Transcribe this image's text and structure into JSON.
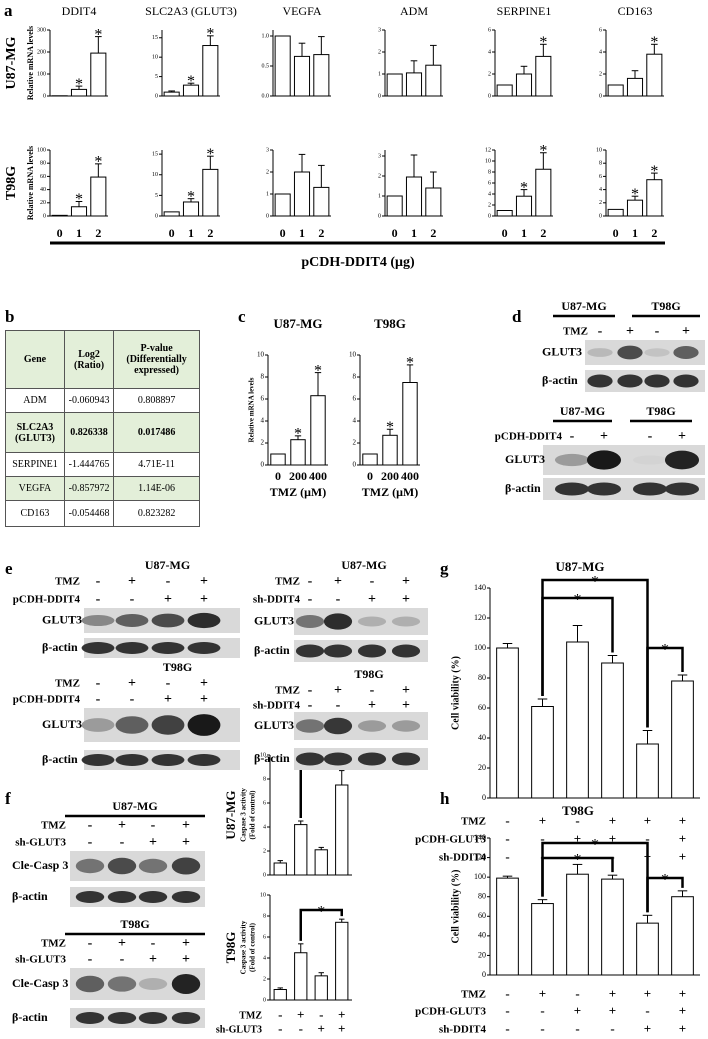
{
  "panel_letters": [
    "a",
    "b",
    "c",
    "d",
    "e",
    "f",
    "g",
    "h"
  ],
  "panel_a": {
    "genes": [
      "DDIT4",
      "SLC2A3 (GLUT3)",
      "VEGFA",
      "ADM",
      "SERPINE1",
      "CD163"
    ],
    "cell_lines": [
      "U87-MG",
      "T98G"
    ],
    "y_label": "Relative mRNA levels",
    "categories": [
      "0",
      "1",
      "2"
    ],
    "x_label": "pCDH-DDIT4 (μg)"
  },
  "table": {
    "header": [
      "Gene",
      "Log2 (Ratio)",
      "P-value (Differentially expressed)"
    ],
    "rows": [
      [
        "ADM",
        "-0.060943",
        "0.808897"
      ],
      [
        "SLC2A3 (GLUT3)",
        "0.826338",
        "0.017486"
      ],
      [
        "SERPINE1",
        "-1.444765",
        "4.71E-11"
      ],
      [
        "VEGFA",
        "-0.857972",
        "1.14E-06"
      ],
      [
        "CD163",
        "-0.054468",
        "0.823282"
      ]
    ]
  },
  "blots_d": [
    {
      "cells": [
        "U87-MG",
        "T98G"
      ],
      "rows": [
        {
          "name": "TMZ",
          "signs": [
            "-",
            "+",
            "-",
            "+"
          ]
        }
      ],
      "blots": [
        "GLUT3",
        "β-actin"
      ]
    },
    {
      "cells": [
        "U87-MG",
        "T98G"
      ],
      "rows": [
        {
          "name": "pCDH-DDIT4",
          "signs": [
            "-",
            "+",
            "-",
            "+"
          ]
        }
      ],
      "blots": [
        "GLUT3",
        "β-actin"
      ]
    }
  ],
  "blots_e": [
    {
      "cells": [
        "U87-MG"
      ],
      "rows": [
        {
          "name": "TMZ",
          "signs": [
            "-",
            "+",
            "-",
            "+"
          ]
        },
        {
          "name": "pCDH-DDIT4",
          "signs": [
            "-",
            "-",
            "+",
            "+"
          ]
        }
      ],
      "blots": [
        "GLUT3",
        "β-actin"
      ]
    },
    {
      "cells": [
        "T98G"
      ],
      "rows": [
        {
          "name": "TMZ",
          "signs": [
            "-",
            "+",
            "-",
            "+"
          ]
        },
        {
          "name": "pCDH-DDIT4",
          "signs": [
            "-",
            "-",
            "+",
            "+"
          ]
        }
      ],
      "blots": [
        "GLUT3",
        "β-actin"
      ]
    },
    {
      "cells": [
        "U87-MG"
      ],
      "rows": [
        {
          "name": "TMZ",
          "signs": [
            "-",
            "+",
            "-",
            "+"
          ]
        },
        {
          "name": "sh-DDIT4",
          "signs": [
            "-",
            "-",
            "+",
            "+"
          ]
        }
      ],
      "blots": [
        "GLUT3",
        "β-actin"
      ]
    },
    {
      "cells": [
        "T98G"
      ],
      "rows": [
        {
          "name": "TMZ",
          "signs": [
            "-",
            "+",
            "-",
            "+"
          ]
        },
        {
          "name": "sh-DDIT4",
          "signs": [
            "-",
            "-",
            "+",
            "+"
          ]
        }
      ],
      "blots": [
        "GLUT3",
        "β-actin"
      ]
    }
  ],
  "blots_f": [
    {
      "cells": [
        "U87-MG"
      ],
      "rows": [
        {
          "name": "TMZ",
          "signs": [
            "-",
            "+",
            "-",
            "+"
          ]
        },
        {
          "name": "sh-GLUT3",
          "signs": [
            "-",
            "-",
            "+",
            "+"
          ]
        }
      ],
      "blots": [
        "Cle-Casp 3",
        "β-actin"
      ]
    },
    {
      "cells": [
        "T98G"
      ],
      "rows": [
        {
          "name": "TMZ",
          "signs": [
            "-",
            "+",
            "-",
            "+"
          ]
        },
        {
          "name": "sh-GLUT3",
          "signs": [
            "-",
            "-",
            "+",
            "+"
          ]
        }
      ],
      "blots": [
        "Cle-Casp 3",
        "β-actin"
      ]
    }
  ],
  "chart_data": [
    {
      "type": "bar",
      "color": "#ffffff",
      "values": [
        1,
        30,
        195
      ],
      "errors": [
        null,
        15,
        75
      ],
      "ylim": [
        0,
        300
      ],
      "yticks": [
        0,
        100,
        200,
        300
      ],
      "annotations": [
        {
          "index": 1,
          "text": "*"
        },
        {
          "index": 2,
          "text": "*"
        }
      ]
    },
    {
      "type": "bar",
      "color": "#ffffff",
      "values": [
        1,
        2.8,
        13
      ],
      "errors": [
        0.3,
        0.5,
        2.5
      ],
      "ylim": [
        0,
        17
      ],
      "yticks": [
        0,
        5,
        10,
        15
      ],
      "annotations": [
        {
          "index": 1,
          "text": "*"
        },
        {
          "index": 2,
          "text": "*"
        }
      ]
    },
    {
      "type": "bar",
      "color": "#ffffff",
      "values": [
        1,
        0.66,
        0.69
      ],
      "errors": [
        null,
        0.22,
        0.3
      ],
      "ylim": [
        0,
        1.1
      ],
      "yticks": [
        {
          "value": 0,
          "label": "0.0"
        },
        {
          "value": 0.5,
          "label": "0.5"
        },
        {
          "value": 1,
          "label": "1.0"
        }
      ],
      "annotations": []
    },
    {
      "type": "bar",
      "color": "#ffffff",
      "values": [
        1,
        1.05,
        1.4
      ],
      "errors": [
        null,
        0.55,
        0.9
      ],
      "ylim": [
        0,
        3
      ],
      "yticks": [
        0,
        1,
        2,
        3
      ],
      "annotations": []
    },
    {
      "type": "bar",
      "color": "#ffffff",
      "values": [
        1,
        2,
        3.6
      ],
      "errors": [
        null,
        0.7,
        1.1
      ],
      "ylim": [
        0,
        6
      ],
      "yticks": [
        0,
        2,
        4,
        6
      ],
      "annotations": [
        {
          "index": 2,
          "text": "*"
        }
      ]
    },
    {
      "type": "bar",
      "color": "#ffffff",
      "values": [
        1,
        1.6,
        3.8
      ],
      "errors": [
        null,
        0.7,
        0.9
      ],
      "ylim": [
        0,
        6
      ],
      "yticks": [
        0,
        2,
        4,
        6
      ],
      "annotations": [
        {
          "index": 2,
          "text": "*"
        }
      ]
    },
    {
      "type": "bar",
      "color": "#ffffff",
      "values": [
        1,
        14,
        59
      ],
      "errors": [
        null,
        8,
        20
      ],
      "ylim": [
        0,
        100
      ],
      "yticks": [
        0,
        20,
        40,
        60,
        80,
        100
      ],
      "annotations": [
        {
          "index": 1,
          "text": "*"
        },
        {
          "index": 2,
          "text": "*"
        }
      ]
    },
    {
      "type": "bar",
      "color": "#ffffff",
      "values": [
        1,
        3.4,
        11.3
      ],
      "errors": [
        null,
        0.8,
        3.2
      ],
      "ylim": [
        0,
        16
      ],
      "yticks": [
        0,
        5,
        10,
        15
      ],
      "annotations": [
        {
          "index": 1,
          "text": "*"
        },
        {
          "index": 2,
          "text": "*"
        }
      ]
    },
    {
      "type": "bar",
      "color": "#ffffff",
      "values": [
        1,
        2,
        1.3
      ],
      "errors": [
        null,
        0.8,
        1
      ],
      "ylim": [
        0,
        3
      ],
      "yticks": [
        0,
        1,
        2,
        3
      ],
      "annotations": []
    },
    {
      "type": "bar",
      "color": "#ffffff",
      "values": [
        1,
        1.95,
        1.4
      ],
      "errors": [
        null,
        1.1,
        0.8
      ],
      "ylim": [
        0,
        3.3
      ],
      "yticks": [
        0,
        1,
        2,
        3
      ],
      "annotations": []
    },
    {
      "type": "bar",
      "color": "#ffffff",
      "values": [
        1,
        3.6,
        8.5
      ],
      "errors": [
        null,
        1.2,
        3
      ],
      "ylim": [
        0,
        12
      ],
      "yticks": [
        0,
        2,
        4,
        6,
        8,
        10,
        12
      ],
      "annotations": [
        {
          "index": 1,
          "text": "*"
        },
        {
          "index": 2,
          "text": "*"
        }
      ]
    },
    {
      "type": "bar",
      "color": "#ffffff",
      "values": [
        1,
        2.4,
        5.5
      ],
      "errors": [
        null,
        0.6,
        1
      ],
      "ylim": [
        0,
        10
      ],
      "yticks": [
        0,
        2,
        4,
        6,
        8,
        10
      ],
      "annotations": [
        {
          "index": 1,
          "text": "*"
        },
        {
          "index": 2,
          "text": "*"
        }
      ]
    },
    {
      "type": "bar",
      "color": "#ffffff",
      "title": "U87-MG",
      "categories": [
        "0",
        "200",
        "400"
      ],
      "values": [
        1,
        2.3,
        6.3
      ],
      "errors": [
        null,
        0.35,
        2.1
      ],
      "ylim": [
        0,
        10
      ],
      "yticks": [
        0,
        2,
        4,
        6,
        8,
        10
      ],
      "y_label": [
        "Relative mRNA levels"
      ],
      "x_label": "TMZ (μM)",
      "annotations": [
        {
          "index": 1,
          "text": "*"
        },
        {
          "index": 2,
          "text": "*"
        }
      ]
    },
    {
      "type": "bar",
      "color": "#ffffff",
      "title": "T98G",
      "categories": [
        "0",
        "200",
        "400"
      ],
      "values": [
        1,
        2.7,
        7.5
      ],
      "errors": [
        null,
        0.55,
        1.6
      ],
      "ylim": [
        0,
        10
      ],
      "yticks": [
        0,
        2,
        4,
        6,
        8,
        10
      ],
      "x_label": "TMZ (μM)",
      "annotations": [
        {
          "index": 1,
          "text": "*"
        },
        {
          "index": 2,
          "text": "*"
        }
      ]
    },
    {
      "type": "bar",
      "color": "#ffffff",
      "row_label": "U87-MG",
      "y_label": [
        "Caspase 3 activity",
        "(Fold of control)"
      ],
      "values": [
        1,
        4.2,
        2.1,
        7.5
      ],
      "errors": [
        0.2,
        0.3,
        0.2,
        1.2
      ],
      "ylim": [
        0,
        10
      ],
      "yticks": [
        0,
        2,
        4,
        6,
        8,
        10
      ],
      "brackets": [
        {
          "from": 1,
          "to": 3,
          "text": "*"
        }
      ]
    },
    {
      "type": "bar",
      "color": "#ffffff",
      "row_label": "T98G",
      "y_label": [
        "Caspase 3 activity",
        "(Fold of control)"
      ],
      "values": [
        1,
        4.5,
        2.3,
        7.4
      ],
      "errors": [
        0.15,
        0.85,
        0.3,
        0.3
      ],
      "ylim": [
        0,
        10
      ],
      "yticks": [
        0,
        2,
        4,
        6,
        8,
        10
      ],
      "brackets": [
        {
          "from": 1,
          "to": 3,
          "text": "*"
        }
      ],
      "conditions": [
        {
          "name": "TMZ",
          "signs": [
            "-",
            "+",
            "-",
            "+"
          ]
        },
        {
          "name": "sh-GLUT3",
          "signs": [
            "-",
            "-",
            "+",
            "+"
          ]
        }
      ]
    },
    {
      "type": "bar",
      "color": "#ffffff",
      "title": "U87-MG",
      "y_label": [
        "Cell viability (%)"
      ],
      "values": [
        100,
        61,
        104,
        90,
        36,
        78
      ],
      "errors": [
        3,
        5,
        11,
        5,
        9,
        4
      ],
      "ylim": [
        0,
        140
      ],
      "yticks": [
        0,
        20,
        40,
        60,
        80,
        100,
        120,
        140
      ],
      "brackets": [
        {
          "from": 1,
          "to": 4,
          "text": "*"
        },
        {
          "from": 1,
          "to": 3,
          "text": "*"
        },
        {
          "from": 4,
          "to": 5,
          "text": "*"
        }
      ],
      "conditions": [
        {
          "name": "TMZ",
          "signs": [
            "-",
            "+",
            "-",
            "+",
            "+",
            "+"
          ]
        },
        {
          "name": "pCDH-GLUT3",
          "signs": [
            "-",
            "-",
            "+",
            "+",
            "-",
            "+"
          ]
        },
        {
          "name": "sh-DDIT4",
          "signs": [
            "-",
            "-",
            "-",
            "-",
            "+",
            "+"
          ]
        }
      ]
    },
    {
      "type": "bar",
      "color": "#ffffff",
      "title": "T98G",
      "y_label": [
        "Cell viability (%)"
      ],
      "values": [
        99,
        73,
        103,
        98,
        53,
        80
      ],
      "errors": [
        2,
        4,
        10,
        4,
        8,
        6
      ],
      "ylim": [
        0,
        140
      ],
      "yticks": [
        0,
        20,
        40,
        60,
        80,
        100,
        120,
        140
      ],
      "brackets": [
        {
          "from": 1,
          "to": 4,
          "text": "*"
        },
        {
          "from": 1,
          "to": 3,
          "text": "*"
        },
        {
          "from": 4,
          "to": 5,
          "text": "*"
        }
      ],
      "conditions": [
        {
          "name": "TMZ",
          "signs": [
            "-",
            "+",
            "-",
            "+",
            "+",
            "+"
          ]
        },
        {
          "name": "pCDH-GLUT3",
          "signs": [
            "-",
            "-",
            "+",
            "+",
            "-",
            "+"
          ]
        },
        {
          "name": "sh-DDIT4",
          "signs": [
            "-",
            "-",
            "-",
            "-",
            "+",
            "+"
          ]
        }
      ]
    }
  ]
}
